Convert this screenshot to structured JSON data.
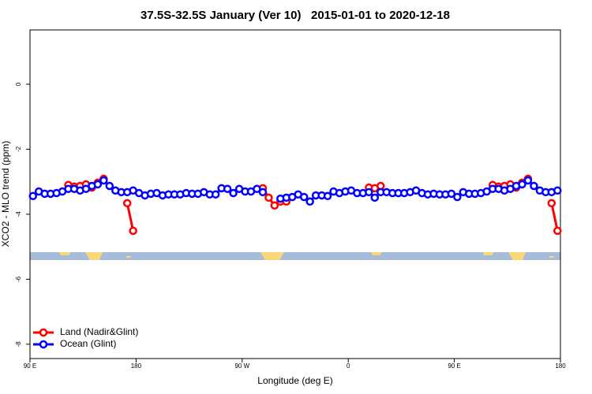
{
  "chart_data": {
    "type": "line",
    "title": "37.5S-32.5S January (Ver 10)   2015-01-01 to 2020-12-18",
    "xlabel": "Longitude (deg E)",
    "ylabel": "XCO2 - MLO trend (ppm)",
    "x": [
      92.5,
      97.5,
      102.5,
      107.5,
      112.5,
      117.5,
      122.5,
      127.5,
      132.5,
      137.5,
      142.5,
      147.5,
      152.5,
      157.5,
      162.5,
      167.5,
      172.5,
      177.5,
      182.5,
      187.5,
      192.5,
      197.5,
      202.5,
      207.5,
      212.5,
      217.5,
      222.5,
      227.5,
      232.5,
      237.5,
      242.5,
      247.5,
      252.5,
      257.5,
      262.5,
      267.5,
      272.5,
      277.5,
      282.5,
      287.5,
      292.5,
      297.5,
      302.5,
      307.5,
      312.5,
      317.5,
      322.5,
      327.5,
      332.5,
      337.5,
      342.5,
      347.5,
      352.5,
      357.5,
      362.5,
      367.5,
      372.5,
      377.5,
      382.5,
      387.5,
      392.5,
      397.5,
      402.5,
      407.5,
      412.5,
      417.5,
      422.5,
      427.5,
      432.5,
      437.5,
      442.5,
      447.5,
      452.5,
      457.5,
      462.5,
      467.5,
      472.5,
      477.5,
      482.5,
      487.5,
      492.5,
      497.5,
      502.5,
      507.5,
      512.5,
      517.5,
      522.5,
      527.5,
      532.5,
      537.5
    ],
    "series": [
      {
        "name": "Land (Nadir&Glint)",
        "color": "#ff0000",
        "values": [
          null,
          null,
          null,
          null,
          null,
          null,
          -3.1,
          -3.15,
          -3.13,
          -3.08,
          -3.18,
          -3.03,
          -2.91,
          null,
          null,
          null,
          -3.66,
          -4.51,
          null,
          null,
          null,
          null,
          null,
          null,
          null,
          null,
          null,
          null,
          null,
          null,
          null,
          null,
          null,
          null,
          null,
          null,
          null,
          null,
          null,
          -3.2,
          -3.49,
          -3.73,
          -3.61,
          -3.61,
          null,
          null,
          null,
          null,
          null,
          null,
          null,
          null,
          null,
          null,
          null,
          null,
          null,
          -3.18,
          -3.2,
          -3.13,
          null,
          null,
          null,
          null,
          null,
          null,
          null,
          null,
          null,
          null,
          null,
          null,
          null,
          null,
          null,
          null,
          null,
          null,
          -3.1,
          -3.15,
          -3.13,
          -3.08,
          -3.18,
          -3.03,
          -2.91,
          null,
          null,
          null,
          -3.66,
          -4.51
        ]
      },
      {
        "name": "Ocean (Glint)",
        "color": "#0000ff",
        "values": [
          -3.44,
          -3.3,
          -3.37,
          -3.37,
          -3.35,
          -3.3,
          -3.22,
          -3.22,
          -3.27,
          -3.22,
          -3.13,
          -3.08,
          -2.96,
          -3.13,
          -3.27,
          -3.32,
          -3.32,
          -3.27,
          -3.35,
          -3.42,
          -3.37,
          -3.35,
          -3.42,
          -3.39,
          -3.39,
          -3.39,
          -3.35,
          -3.37,
          -3.37,
          -3.32,
          -3.39,
          -3.39,
          -3.2,
          -3.22,
          -3.35,
          -3.22,
          -3.3,
          -3.3,
          -3.22,
          -3.32,
          null,
          null,
          -3.52,
          -3.49,
          -3.47,
          -3.39,
          -3.47,
          -3.61,
          -3.42,
          -3.42,
          -3.44,
          -3.3,
          -3.35,
          -3.3,
          -3.27,
          -3.35,
          -3.35,
          -3.32,
          -3.49,
          -3.32,
          -3.32,
          -3.35,
          -3.35,
          -3.35,
          -3.32,
          -3.27,
          -3.35,
          -3.39,
          -3.37,
          -3.39,
          -3.39,
          -3.37,
          -3.47,
          -3.32,
          -3.37,
          -3.37,
          -3.35,
          -3.3,
          -3.22,
          -3.22,
          -3.27,
          -3.22,
          -3.13,
          -3.08,
          -2.96,
          -3.13,
          -3.27,
          -3.32,
          -3.32,
          -3.27
        ]
      }
    ],
    "xlim": [
      90,
      540
    ],
    "xticks": [
      {
        "value": 90,
        "label": "90 E"
      },
      180,
      {
        "value": 270,
        "label": "90 W"
      },
      {
        "value": 360,
        "label": "0"
      },
      {
        "value": 450,
        "label": "90 E"
      },
      {
        "value": 540,
        "label": "180"
      }
    ],
    "ylim": [
      -8.44,
      1.67
    ],
    "yticks": [
      0,
      -2,
      -4,
      -6,
      -8
    ],
    "legend": "lower left"
  }
}
